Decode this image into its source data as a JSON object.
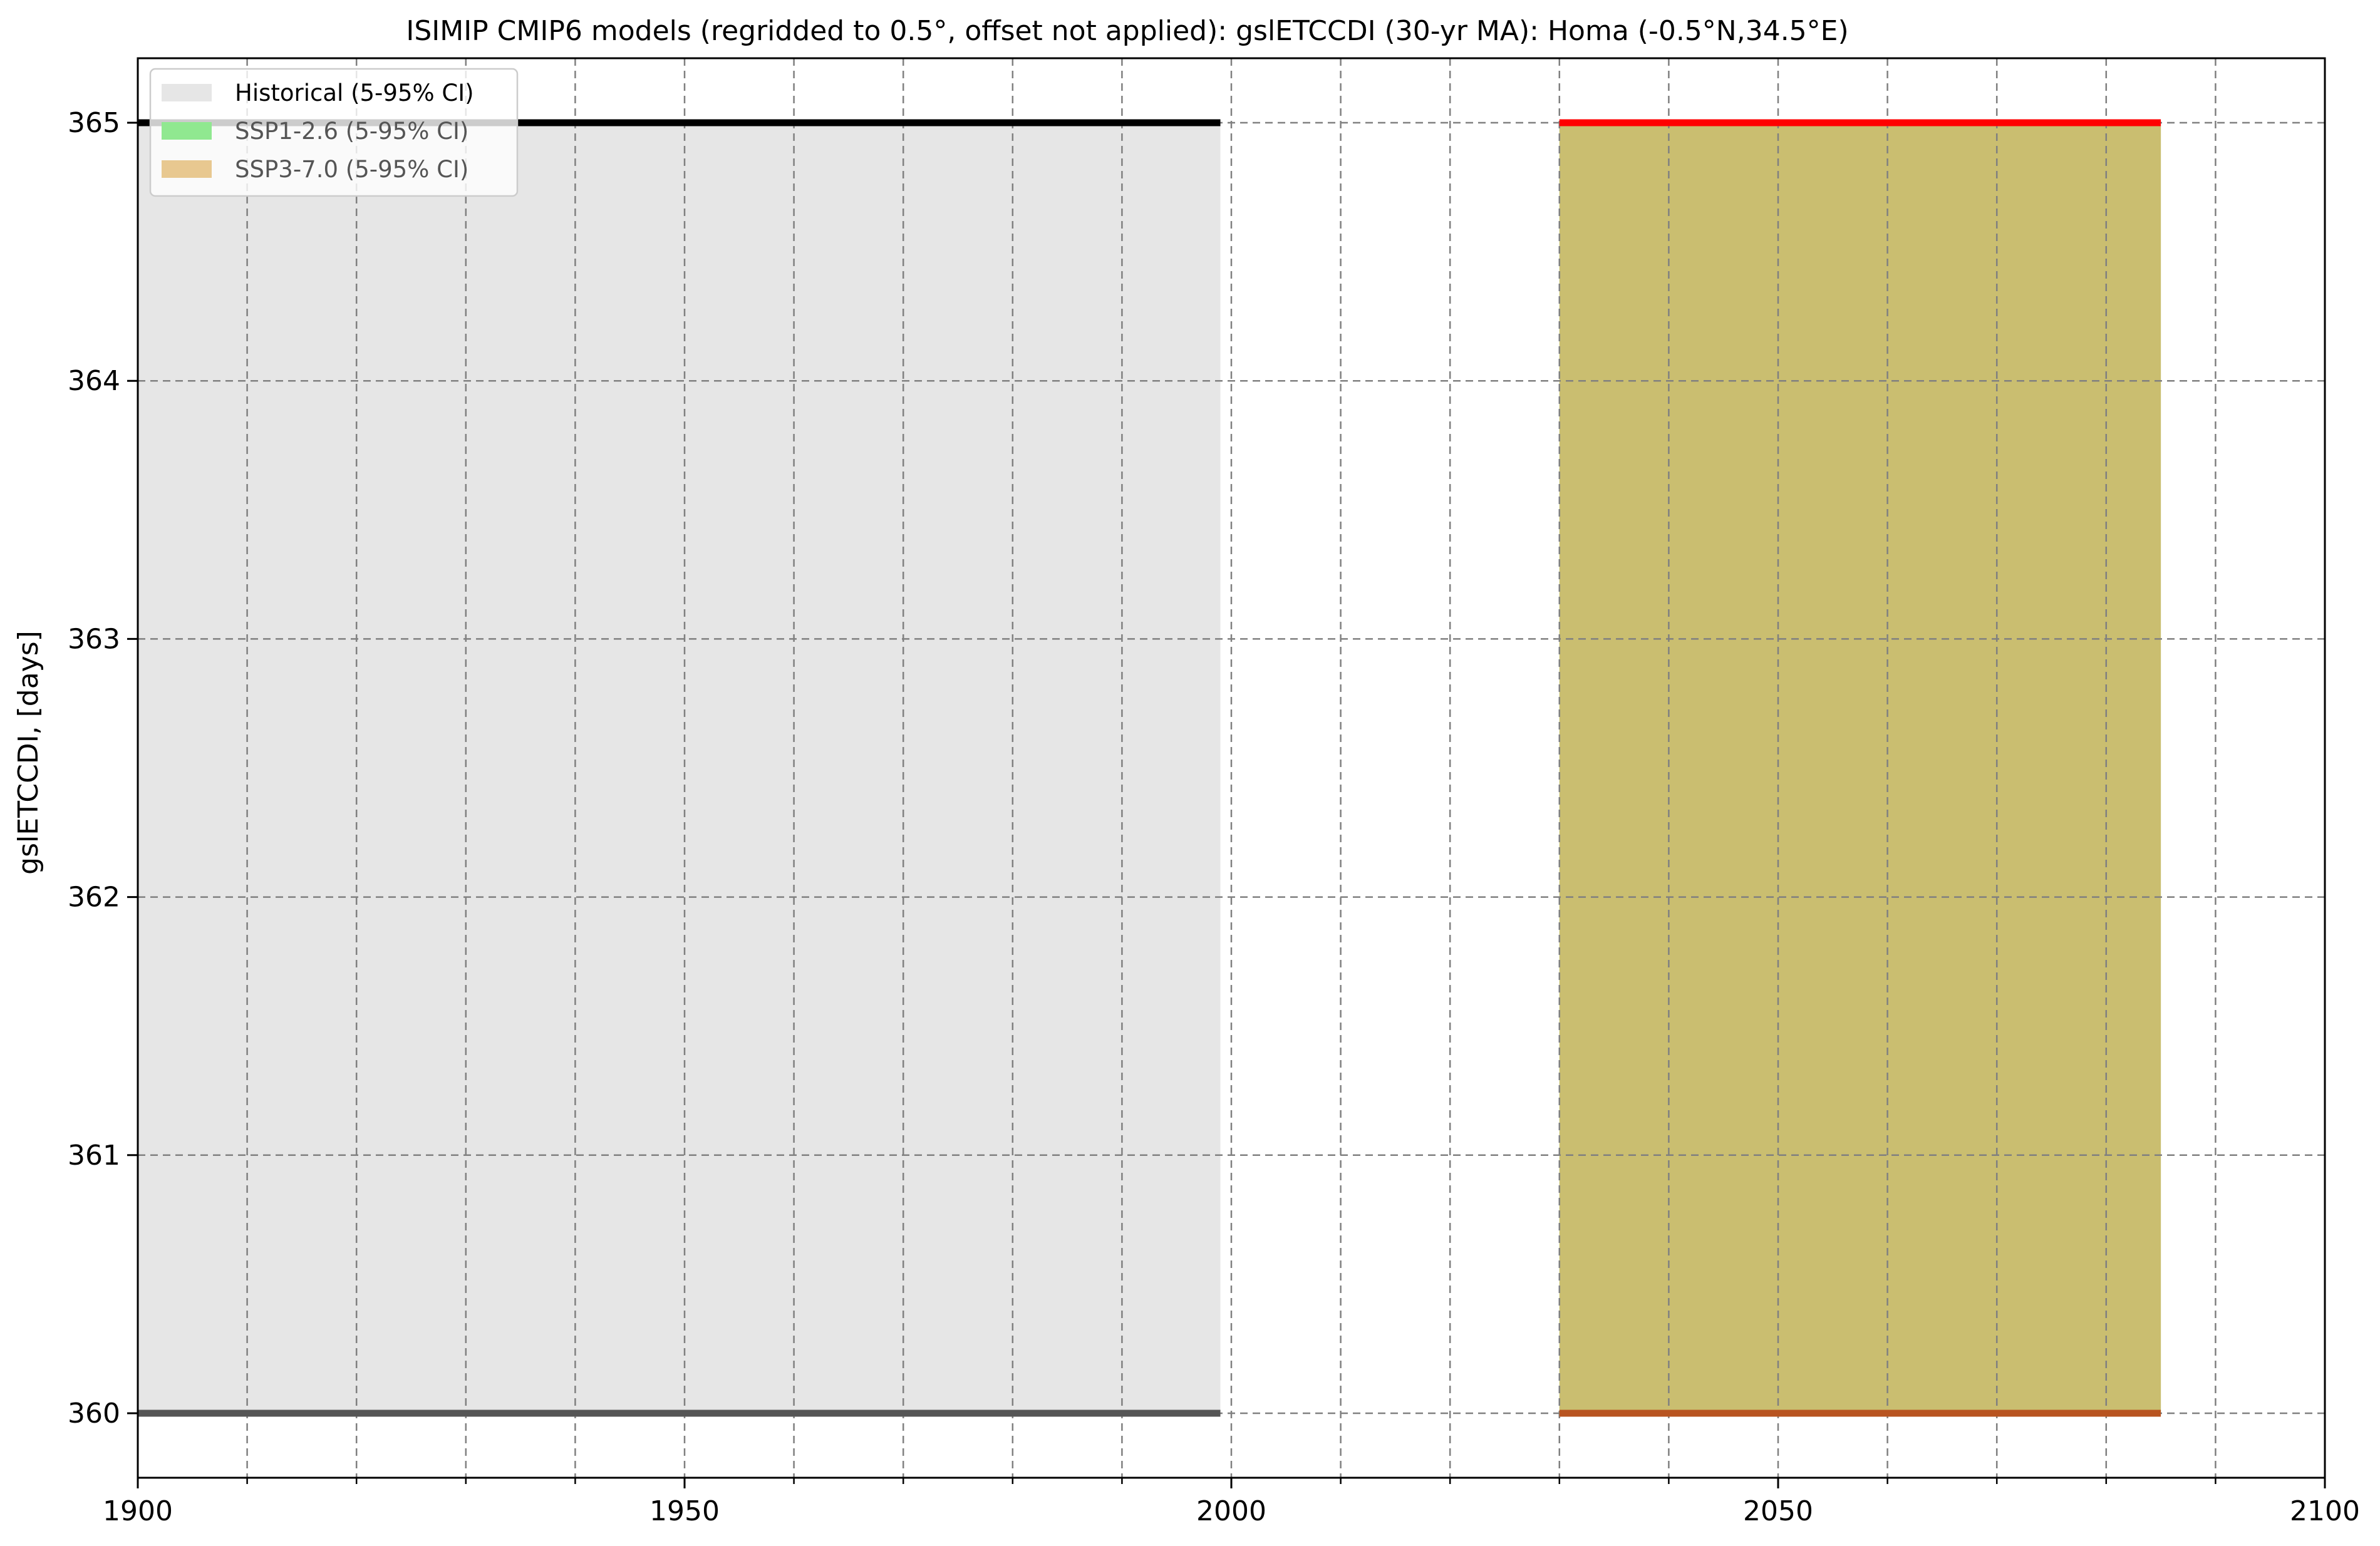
{
  "chart_data": {
    "type": "area",
    "title": "ISIMIP CMIP6 models (regridded to 0.5°, offset not applied): gslETCCDI (30-yr MA): Homa (-0.5°N,34.5°E)",
    "xlabel": "",
    "ylabel": "gslETCCDI, [days]",
    "xlim": [
      1900,
      2100
    ],
    "ylim": [
      359.75,
      365.25
    ],
    "xticks": [
      1900,
      1950,
      2000,
      2050,
      2100
    ],
    "xticks_minor": [
      1910,
      1920,
      1930,
      1940,
      1960,
      1970,
      1980,
      1990,
      2010,
      2020,
      2030,
      2040,
      2060,
      2070,
      2080,
      2090
    ],
    "yticks": [
      360,
      361,
      362,
      363,
      364,
      365
    ],
    "grid": true,
    "legend": {
      "placement": "upper-left",
      "entries": [
        {
          "label": "Historical (5-95% CI)",
          "color": "#e6e6e6"
        },
        {
          "label": "SSP1-2.6 (5-95% CI)",
          "color": "#90e890"
        },
        {
          "label": "SSP3-7.0 (5-95% CI)",
          "color": "#e8c890"
        }
      ]
    },
    "bands": [
      {
        "name": "Historical (5-95% CI)",
        "x": [
          1900,
          1999
        ],
        "low": 360,
        "high": 365,
        "color": "#e6e6e6"
      },
      {
        "name": "SSP1-2.6 (5-95% CI)",
        "x": [
          2030,
          2085
        ],
        "low": 360,
        "high": 365,
        "color": "#7fdc7f"
      },
      {
        "name": "SSP3-7.0 (5-95% CI)",
        "x": [
          2030,
          2085
        ],
        "low": 360,
        "high": 365,
        "color": "#d8b060"
      }
    ],
    "series": [
      {
        "x": [
          1900,
          1999
        ],
        "values": [
          365,
          365
        ],
        "color": "#000000"
      },
      {
        "x": [
          1900,
          1999
        ],
        "values": [
          360,
          360
        ],
        "color": "#555555"
      },
      {
        "x": [
          2030,
          2085
        ],
        "values": [
          365,
          365
        ],
        "color": "#ff0000"
      },
      {
        "x": [
          2030,
          2085
        ],
        "values": [
          360,
          360
        ],
        "color": "#b85420"
      }
    ]
  }
}
